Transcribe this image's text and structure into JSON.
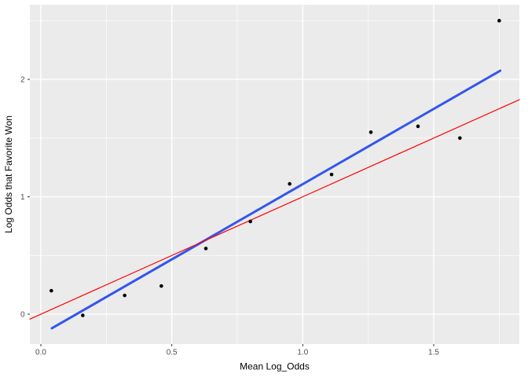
{
  "chart_data": {
    "type": "scatter",
    "title": "",
    "xlabel": "Mean Log_Odds",
    "ylabel": "Log Odds that Favorite Won",
    "xlim": [
      -0.042,
      1.827
    ],
    "ylim": [
      -0.254,
      2.636
    ],
    "grid": true,
    "legend": "none",
    "x_ticks": {
      "values": [
        0,
        0.5,
        1.0,
        1.5
      ],
      "labels": [
        "0.0",
        "0.5",
        "1.0",
        "1.5"
      ],
      "minor": [
        0.25,
        0.75,
        1.25,
        1.75
      ]
    },
    "y_ticks": {
      "values": [
        0,
        1,
        2
      ],
      "labels": [
        "0",
        "1",
        "2"
      ],
      "minor": [
        0.5,
        1.5,
        2.5
      ]
    },
    "points": [
      [
        0.04,
        0.2
      ],
      [
        0.16,
        -0.01
      ],
      [
        0.32,
        0.16
      ],
      [
        0.46,
        0.24
      ],
      [
        0.63,
        0.56
      ],
      [
        0.8,
        0.79
      ],
      [
        0.95,
        1.11
      ],
      [
        1.11,
        1.19
      ],
      [
        1.26,
        1.55
      ],
      [
        1.44,
        1.6
      ],
      [
        1.6,
        1.5
      ],
      [
        1.75,
        2.5
      ]
    ],
    "lines": [
      {
        "name": "linear-fit-line",
        "color": "#3355EE",
        "width": 3,
        "x1": 0.042,
        "y1": -0.12,
        "x2": 1.754,
        "y2": 2.074
      },
      {
        "name": "identity-line",
        "color": "#FF0000",
        "width": 1.2,
        "x1": -0.042,
        "y1": -0.042,
        "x2": 1.827,
        "y2": 1.827
      }
    ],
    "style": {
      "panel_bg": "#EBEBEB",
      "grid_color": "#FFFFFF",
      "point_color": "#000000",
      "point_radius": 2.3,
      "tick_mark_color": "#333333",
      "tick_label_color": "#4D4D4D",
      "axis_title_color": "#000000"
    }
  }
}
